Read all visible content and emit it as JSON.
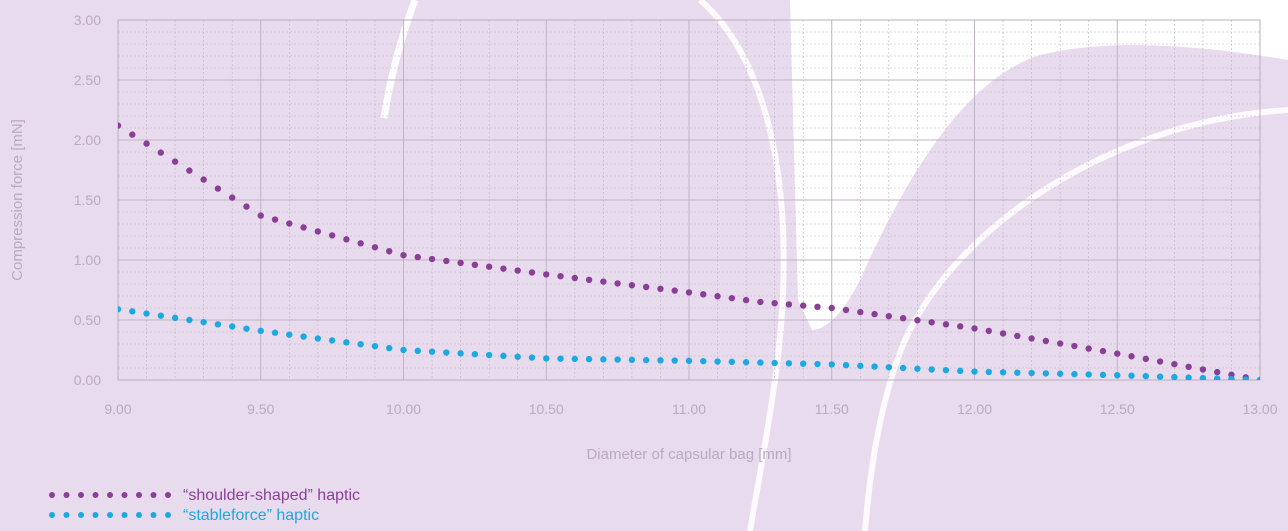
{
  "chart_data": {
    "type": "scatter",
    "xlabel": "Diameter of capsular bag [mm]",
    "ylabel": "Compression force [mN]",
    "xlim": [
      9.0,
      13.0
    ],
    "ylim": [
      0.0,
      3.0
    ],
    "x_ticks": [
      "9.00",
      "9.50",
      "10.00",
      "10.50",
      "11.00",
      "11.50",
      "12.00",
      "12.50",
      "13.00"
    ],
    "y_ticks": [
      "0.00",
      "0.50",
      "1.00",
      "1.50",
      "2.00",
      "2.50",
      "3.00"
    ],
    "grid": true,
    "legend_position": "bottom-left",
    "series": [
      {
        "name": "“shoulder-shaped” haptic",
        "color": "#8a3f97",
        "points": [
          [
            9.0,
            2.12
          ],
          [
            9.5,
            1.37
          ],
          [
            10.0,
            1.04
          ],
          [
            10.5,
            0.88
          ],
          [
            11.0,
            0.73
          ],
          [
            11.25,
            0.65
          ],
          [
            11.5,
            0.6
          ],
          [
            12.0,
            0.43
          ],
          [
            12.5,
            0.22
          ],
          [
            13.0,
            0.0
          ]
        ]
      },
      {
        "name": "“stableforce” haptic",
        "color": "#1aa9e0",
        "points": [
          [
            9.0,
            0.59
          ],
          [
            9.5,
            0.41
          ],
          [
            10.0,
            0.25
          ],
          [
            10.5,
            0.18
          ],
          [
            11.0,
            0.16
          ],
          [
            11.5,
            0.13
          ],
          [
            12.0,
            0.07
          ],
          [
            12.5,
            0.04
          ],
          [
            13.0,
            0.0
          ]
        ]
      }
    ]
  }
}
